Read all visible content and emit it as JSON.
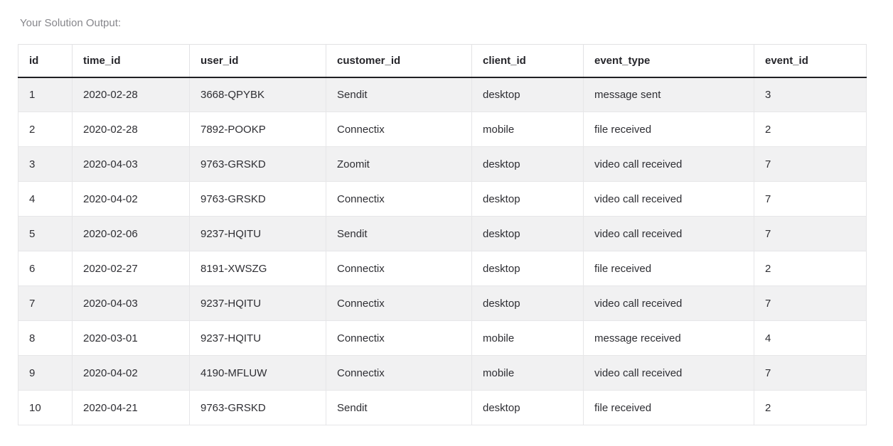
{
  "page": {
    "label": "Your Solution Output:"
  },
  "table": {
    "columns": [
      "id",
      "time_id",
      "user_id",
      "customer_id",
      "client_id",
      "event_type",
      "event_id"
    ],
    "rows": [
      [
        "1",
        "2020-02-28",
        "3668-QPYBK",
        "Sendit",
        "desktop",
        "message sent",
        "3"
      ],
      [
        "2",
        "2020-02-28",
        "7892-POOKP",
        "Connectix",
        "mobile",
        "file received",
        "2"
      ],
      [
        "3",
        "2020-04-03",
        "9763-GRSKD",
        "Zoomit",
        "desktop",
        "video call received",
        "7"
      ],
      [
        "4",
        "2020-04-02",
        "9763-GRSKD",
        "Connectix",
        "desktop",
        "video call received",
        "7"
      ],
      [
        "5",
        "2020-02-06",
        "9237-HQITU",
        "Sendit",
        "desktop",
        "video call received",
        "7"
      ],
      [
        "6",
        "2020-02-27",
        "8191-XWSZG",
        "Connectix",
        "desktop",
        "file received",
        "2"
      ],
      [
        "7",
        "2020-04-03",
        "9237-HQITU",
        "Connectix",
        "desktop",
        "video call received",
        "7"
      ],
      [
        "8",
        "2020-03-01",
        "9237-HQITU",
        "Connectix",
        "mobile",
        "message received",
        "4"
      ],
      [
        "9",
        "2020-04-02",
        "4190-MFLUW",
        "Connectix",
        "mobile",
        "video call received",
        "7"
      ],
      [
        "10",
        "2020-04-21",
        "9763-GRSKD",
        "Sendit",
        "desktop",
        "file received",
        "2"
      ]
    ]
  },
  "colors": {
    "stripe_row_bg": "#f1f1f2",
    "cell_border": "#e6e6e8",
    "header_bottom_border": "#1f1f23",
    "text": "#2e2e33",
    "label_text": "#86868b"
  }
}
